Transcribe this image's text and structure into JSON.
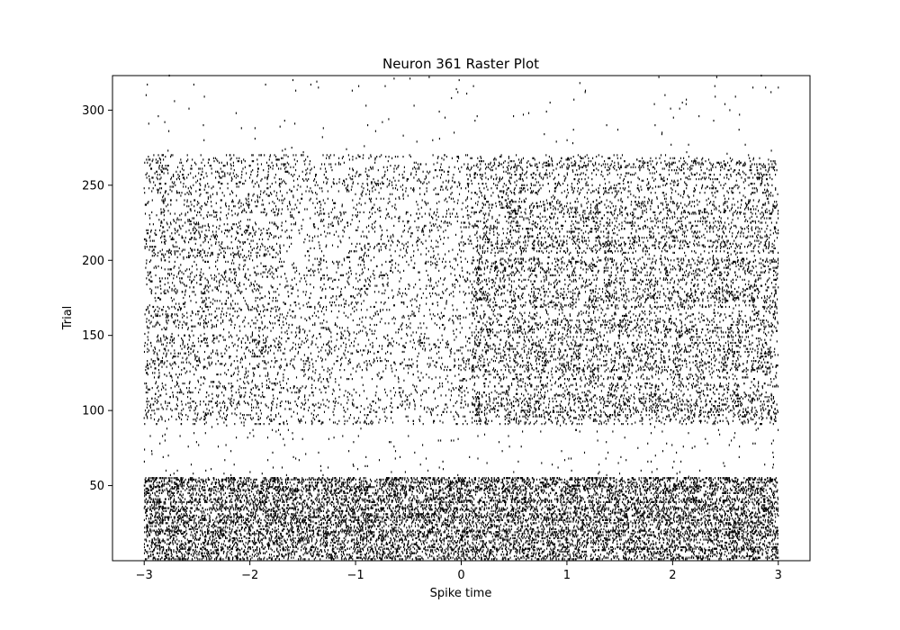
{
  "chart_data": {
    "type": "scatter",
    "subtype": "raster",
    "title": "Neuron 361 Raster Plot",
    "xlabel": "Spike time",
    "ylabel": "Trial",
    "xlim": [
      -3.3,
      3.3
    ],
    "ylim": [
      0,
      323
    ],
    "x_ticks": [
      -3,
      -2,
      -1,
      0,
      1,
      2,
      3
    ],
    "x_tick_labels": [
      "−3",
      "−2",
      "−1",
      "0",
      "1",
      "2",
      "3"
    ],
    "y_ticks": [
      50,
      100,
      150,
      200,
      250,
      300
    ],
    "y_tick_labels": [
      "50",
      "100",
      "150",
      "200",
      "250",
      "300"
    ],
    "marker": "vertical tick",
    "marker_color": "#000000",
    "grid": false,
    "spike_time_range": [
      -3,
      3
    ],
    "density_profile": [
      {
        "trials": [
          1,
          55
        ],
        "time_range": [
          -3,
          3
        ],
        "relative_rate": 1.0
      },
      {
        "trials": [
          56,
          90
        ],
        "time_range": [
          -3,
          3
        ],
        "relative_rate": 0.03
      },
      {
        "trials": [
          91,
          270
        ],
        "time_range": [
          -3,
          -1.7
        ],
        "relative_rate": 0.35
      },
      {
        "trials": [
          91,
          270
        ],
        "time_range": [
          -1.7,
          0.1
        ],
        "relative_rate": 0.25
      },
      {
        "trials": [
          91,
          270
        ],
        "time_range": [
          0.1,
          3
        ],
        "relative_rate": 0.5
      },
      {
        "trials": [
          271,
          323
        ],
        "time_range": [
          -3,
          3
        ],
        "relative_rate": 0.01
      }
    ],
    "sample_spikes": [
      {
        "trial": 317,
        "t": -2.97
      },
      {
        "trial": 317,
        "t": -2.53
      },
      {
        "trial": 316,
        "t": -0.97
      },
      {
        "trial": 316,
        "t": -0.72
      },
      {
        "trial": 320,
        "t": -0.02
      },
      {
        "trial": 293,
        "t": 0.13
      },
      {
        "trial": 290,
        "t": -2.44
      },
      {
        "trial": 288,
        "t": -2.08
      },
      {
        "trial": 280,
        "t": -0.27
      },
      {
        "trial": 279,
        "t": 0.9
      },
      {
        "trial": 322,
        "t": 1.87
      },
      {
        "trial": 307,
        "t": 2.13
      },
      {
        "trial": 296,
        "t": 2.25
      },
      {
        "trial": 316,
        "t": 2.4
      },
      {
        "trial": 315,
        "t": 2.76
      },
      {
        "trial": 315,
        "t": 2.88
      },
      {
        "trial": 315,
        "t": 3.0
      },
      {
        "trial": 285,
        "t": 1.9
      }
    ]
  }
}
